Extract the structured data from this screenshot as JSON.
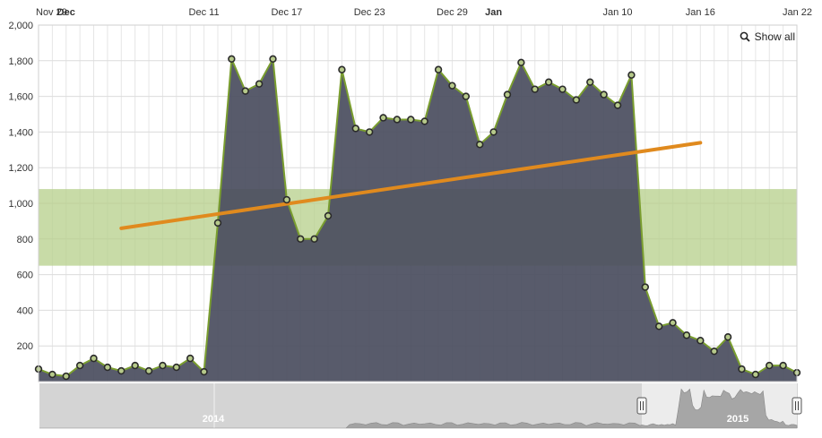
{
  "controls": {
    "show_all_label": "Show all"
  },
  "colors": {
    "area_fill": "#4a4d5e",
    "series_line": "#7a9e2f",
    "marker_fill": "#b6c98a",
    "marker_stroke": "#2b2b2b",
    "trend_line": "#e08a1e",
    "band_fill": "#b6cf8a",
    "grid": "#e6e6e6",
    "navigator_bg": "#d4d4d4",
    "navigator_window": "#ececec",
    "navigator_series": "#9a9a9a"
  },
  "chart_data": {
    "type": "area",
    "y_ticks": [
      "2,000",
      "1,800",
      "1,600",
      "1,400",
      "1,200",
      "1,000",
      "800",
      "600",
      "400",
      "200"
    ],
    "ylim": [
      0,
      2000
    ],
    "x_ticks": [
      {
        "label": "Nov 29",
        "major": false
      },
      {
        "label": "Dec",
        "major": true
      },
      {
        "label": "Dec 11",
        "major": false
      },
      {
        "label": "Dec 17",
        "major": false
      },
      {
        "label": "Dec 23",
        "major": false
      },
      {
        "label": "Dec 29",
        "major": false
      },
      {
        "label": "Jan",
        "major": true
      },
      {
        "label": "Jan 10",
        "major": false
      },
      {
        "label": "Jan 16",
        "major": false
      },
      {
        "label": "Jan 22",
        "major": false
      }
    ],
    "x_tick_days": [
      0,
      2,
      12,
      18,
      24,
      30,
      33,
      42,
      48,
      54
    ],
    "x_start": "2014-11-29",
    "values": [
      70,
      40,
      30,
      90,
      130,
      80,
      60,
      90,
      60,
      90,
      80,
      130,
      55,
      890,
      1810,
      1630,
      1670,
      1810,
      1020,
      800,
      800,
      930,
      1750,
      1420,
      1400,
      1480,
      1470,
      1470,
      1460,
      1750,
      1660,
      1600,
      1330,
      1400,
      1610,
      1790,
      1640,
      1680,
      1640,
      1580,
      1680,
      1610,
      1550,
      1720,
      530,
      310,
      330,
      260,
      230,
      170,
      250,
      70,
      40,
      90,
      90,
      50
    ],
    "trend_line": {
      "start": {
        "day": 6,
        "value": 860
      },
      "end": {
        "day": 48,
        "value": 1340
      }
    },
    "band": {
      "from": 650,
      "to": 1080
    },
    "grid": true,
    "navigator": {
      "labels": [
        "2014",
        "2015"
      ],
      "handles": [
        "left-handle",
        "right-handle"
      ]
    }
  }
}
